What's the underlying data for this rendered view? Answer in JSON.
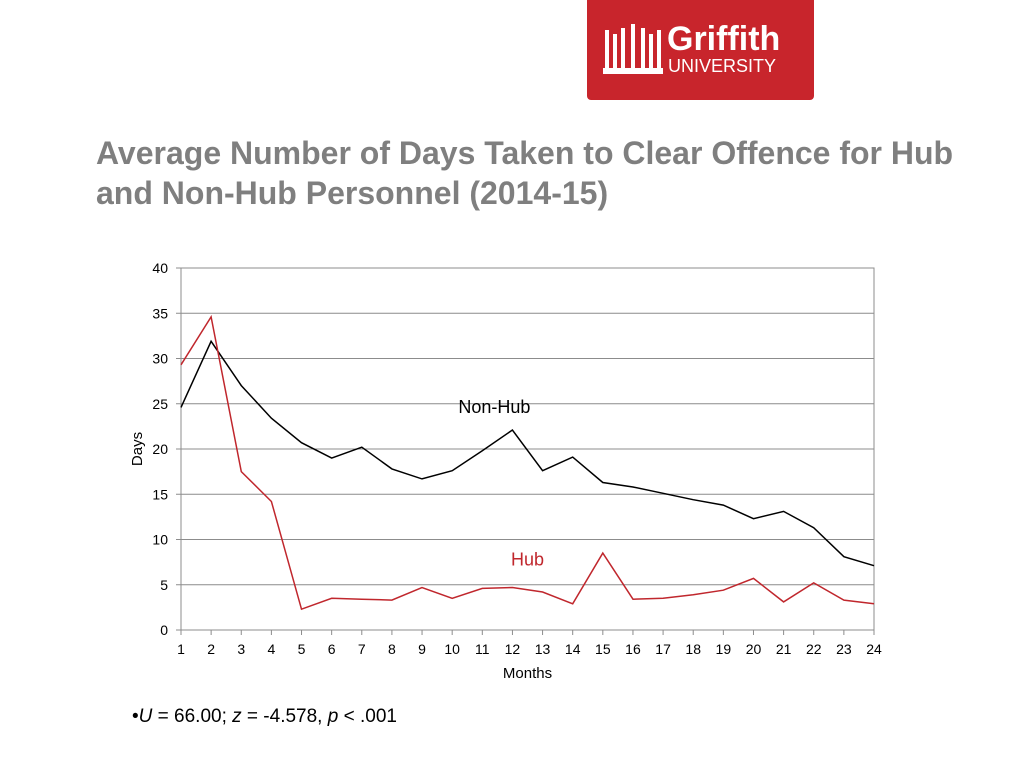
{
  "logo": {
    "name": "Griffith",
    "sub": "UNIVERSITY",
    "color": "#c8252c"
  },
  "title": "Average Number of Days Taken to Clear Offence for Hub and Non-Hub Personnel (2014-15)",
  "chart_data": {
    "type": "line",
    "xlabel": "Months",
    "ylabel": "Days",
    "x": [
      1,
      2,
      3,
      4,
      5,
      6,
      7,
      8,
      9,
      10,
      11,
      12,
      13,
      14,
      15,
      16,
      17,
      18,
      19,
      20,
      21,
      22,
      23,
      24
    ],
    "ylim": [
      0,
      40
    ],
    "yticks": [
      0,
      5,
      10,
      15,
      20,
      25,
      30,
      35,
      40
    ],
    "grid": true,
    "series": [
      {
        "name": "Non-Hub",
        "color": "#000000",
        "values": [
          24.6,
          31.9,
          27.0,
          23.4,
          20.7,
          19.0,
          20.2,
          17.8,
          16.7,
          17.6,
          19.8,
          22.1,
          17.6,
          19.1,
          16.3,
          15.8,
          15.1,
          14.4,
          13.8,
          12.3,
          13.1,
          11.3,
          8.1,
          7.1
        ]
      },
      {
        "name": "Hub",
        "color": "#c0272d",
        "values": [
          29.3,
          34.6,
          17.5,
          14.2,
          2.3,
          3.5,
          3.4,
          3.3,
          4.7,
          3.5,
          4.6,
          4.7,
          4.2,
          2.9,
          8.5,
          3.4,
          3.5,
          3.9,
          4.4,
          5.7,
          3.1,
          5.2,
          3.3,
          2.9
        ]
      }
    ]
  },
  "stat_text": {
    "u_symbol": "U",
    "u_value": " = 66.00; ",
    "z_symbol": "z",
    "z_value": " = -4.578, ",
    "p_symbol": "p",
    "p_value": " < .001"
  }
}
